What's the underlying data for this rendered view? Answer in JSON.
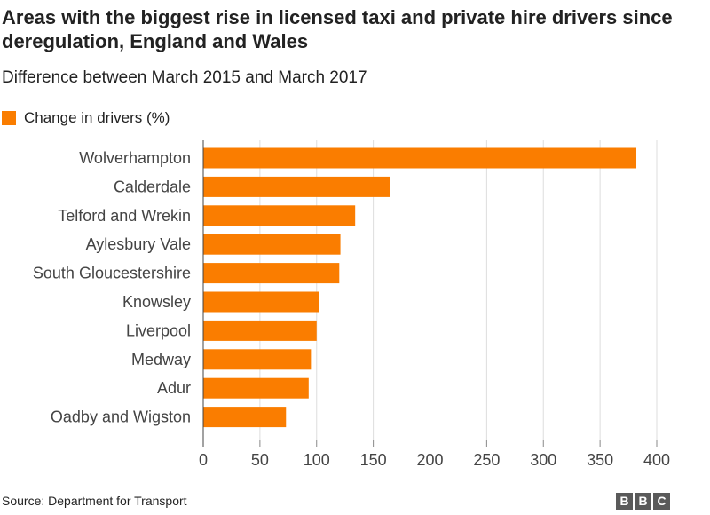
{
  "chart_data": {
    "type": "bar",
    "orientation": "horizontal",
    "title": "Areas with the biggest rise in licensed taxi and private hire drivers since deregulation, England and Wales",
    "subtitle": "Difference between March 2015 and March 2017",
    "categories": [
      "Wolverhampton",
      "Calderdale",
      "Telford and Wrekin",
      "Aylesbury Vale",
      "South Gloucestershire",
      "Knowsley",
      "Liverpool",
      "Medway",
      "Adur",
      "Oadby and Wigston"
    ],
    "series": [
      {
        "name": "Change in drivers (%)",
        "color": "#fa7d00",
        "values": [
          382,
          165,
          134,
          121,
          120,
          102,
          100,
          95,
          93,
          73
        ]
      }
    ],
    "xlim": [
      0,
      400
    ],
    "xticks": [
      0,
      50,
      100,
      150,
      200,
      250,
      300,
      350,
      400
    ],
    "grid": true,
    "legend_position": "top-left"
  },
  "footer": {
    "source": "Source: Department for Transport",
    "logo_letters": [
      "B",
      "B",
      "C"
    ]
  }
}
